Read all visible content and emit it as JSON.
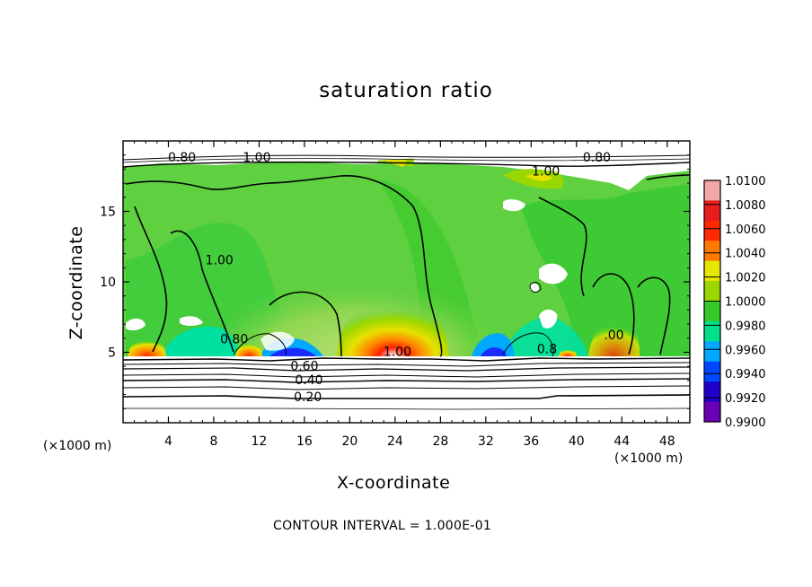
{
  "chart_data": {
    "type": "heatmap",
    "title": "saturation ratio",
    "xlabel": "X-coordinate",
    "ylabel": "Z-coordinate",
    "x_unit_label": "(×1000 m)",
    "x_ticks": [
      4,
      8,
      12,
      16,
      20,
      24,
      28,
      32,
      36,
      40,
      44,
      48
    ],
    "y_ticks": [
      5,
      10,
      15
    ],
    "xlim": [
      0,
      50
    ],
    "ylim": [
      0,
      20
    ],
    "colorbar": {
      "labels": [
        "1.0100",
        "1.0080",
        "1.0060",
        "1.0040",
        "1.0020",
        "1.0000",
        "0.9980",
        "0.9960",
        "0.9940",
        "0.9920",
        "0.9900"
      ],
      "colors": [
        "#f4a7a7",
        "#e81e1e",
        "#ff2a00",
        "#ff7a00",
        "#e6e600",
        "#9ad700",
        "#35c928",
        "#00e08a",
        "#00a8ff",
        "#0048ff",
        "#1e00c8",
        "#6a00b4"
      ]
    },
    "contour_interval": "CONTOUR INTERVAL = 1.000E-01",
    "contour_labels": [
      {
        "text": "0.80",
        "x": 5.2,
        "z": 18.6
      },
      {
        "text": "1.00",
        "x": 11.8,
        "z": 18.6
      },
      {
        "text": "1.00",
        "x": 37.3,
        "z": 17.6
      },
      {
        "text": "0.80",
        "x": 41.8,
        "z": 18.6
      },
      {
        "text": "1.00",
        "x": 8.5,
        "z": 11.3
      },
      {
        "text": "0.80",
        "x": 9.8,
        "z": 5.7
      },
      {
        "text": "1.00",
        "x": 24.2,
        "z": 4.8
      },
      {
        "text": "0.60",
        "x": 16.0,
        "z": 3.8
      },
      {
        "text": "0.40",
        "x": 16.4,
        "z": 2.8
      },
      {
        "text": "0.20",
        "x": 16.3,
        "z": 1.6
      },
      {
        "text": ".00",
        "x": 43.3,
        "z": 6.0
      },
      {
        "text": "0.8",
        "x": 37.4,
        "z": 5.0
      }
    ]
  }
}
